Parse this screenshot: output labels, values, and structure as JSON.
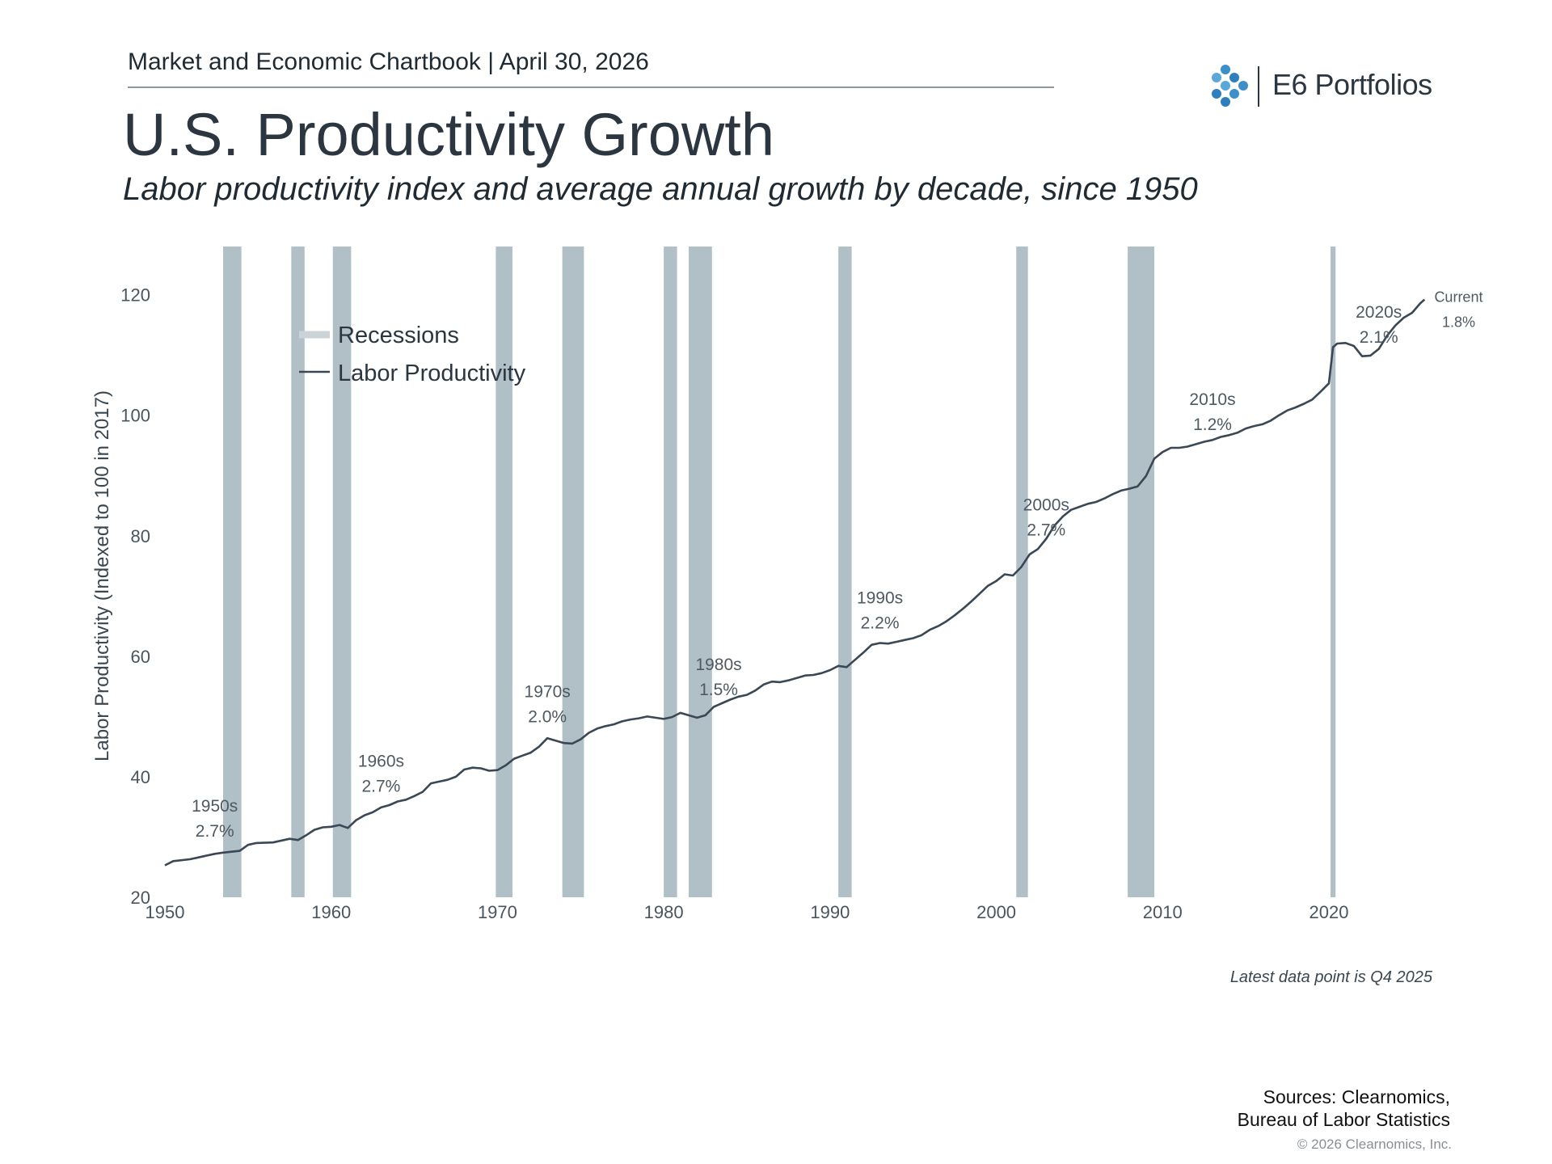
{
  "header": {
    "chartbook_title": "Market and Economic Chartbook | April 30, 2026",
    "brand_name": "E6 Portfolios"
  },
  "chart_data": {
    "type": "line",
    "title": "U.S. Productivity Growth",
    "subtitle": "Labor productivity index and average annual growth by decade, since 1950",
    "ylabel": "Labor Productivity (Indexed to 100 in 2017)",
    "xlim": [
      1950,
      2027
    ],
    "ylim": [
      20,
      128
    ],
    "y_ticks": [
      20,
      40,
      60,
      80,
      100,
      120
    ],
    "x_ticks": [
      1950,
      1960,
      1970,
      1980,
      1990,
      2000,
      2010,
      2020
    ],
    "grid": false,
    "legend": {
      "placement": "top-left",
      "entries": [
        "Recessions",
        "Labor Productivity"
      ]
    },
    "series": [
      {
        "name": "Labor Productivity",
        "points": [
          [
            1950.0,
            25.3
          ],
          [
            1950.5,
            26.0
          ],
          [
            1951.5,
            26.3
          ],
          [
            1952.0,
            26.6
          ],
          [
            1953.0,
            27.2
          ],
          [
            1953.5,
            27.4
          ],
          [
            1954.5,
            27.7
          ],
          [
            1955.0,
            28.7
          ],
          [
            1955.5,
            29.0
          ],
          [
            1956.5,
            29.1
          ],
          [
            1957.5,
            29.7
          ],
          [
            1958.0,
            29.5
          ],
          [
            1958.5,
            30.3
          ],
          [
            1959.0,
            31.2
          ],
          [
            1959.5,
            31.6
          ],
          [
            1960.0,
            31.7
          ],
          [
            1960.5,
            32.0
          ],
          [
            1961.0,
            31.5
          ],
          [
            1961.5,
            32.8
          ],
          [
            1962.0,
            33.6
          ],
          [
            1962.5,
            34.1
          ],
          [
            1963.0,
            34.9
          ],
          [
            1963.5,
            35.3
          ],
          [
            1964.0,
            35.9
          ],
          [
            1964.5,
            36.2
          ],
          [
            1965.0,
            36.8
          ],
          [
            1965.5,
            37.5
          ],
          [
            1966.0,
            38.9
          ],
          [
            1966.5,
            39.2
          ],
          [
            1967.0,
            39.5
          ],
          [
            1967.5,
            40.0
          ],
          [
            1968.0,
            41.2
          ],
          [
            1968.5,
            41.5
          ],
          [
            1969.0,
            41.4
          ],
          [
            1969.5,
            41.0
          ],
          [
            1970.0,
            41.1
          ],
          [
            1970.5,
            41.9
          ],
          [
            1971.0,
            43.0
          ],
          [
            1971.5,
            43.5
          ],
          [
            1972.0,
            44.0
          ],
          [
            1972.5,
            45.0
          ],
          [
            1973.0,
            46.4
          ],
          [
            1973.5,
            46.0
          ],
          [
            1974.0,
            45.6
          ],
          [
            1974.5,
            45.5
          ],
          [
            1975.0,
            46.2
          ],
          [
            1975.5,
            47.3
          ],
          [
            1976.0,
            48.0
          ],
          [
            1976.5,
            48.4
          ],
          [
            1977.0,
            48.7
          ],
          [
            1977.5,
            49.2
          ],
          [
            1978.0,
            49.5
          ],
          [
            1978.5,
            49.7
          ],
          [
            1979.0,
            50.0
          ],
          [
            1979.5,
            49.8
          ],
          [
            1980.0,
            49.6
          ],
          [
            1980.5,
            49.9
          ],
          [
            1981.0,
            50.6
          ],
          [
            1981.5,
            50.2
          ],
          [
            1982.0,
            49.8
          ],
          [
            1982.5,
            50.2
          ],
          [
            1983.0,
            51.6
          ],
          [
            1983.5,
            52.2
          ],
          [
            1984.0,
            52.8
          ],
          [
            1984.5,
            53.3
          ],
          [
            1985.0,
            53.6
          ],
          [
            1985.5,
            54.3
          ],
          [
            1986.0,
            55.3
          ],
          [
            1986.5,
            55.8
          ],
          [
            1987.0,
            55.7
          ],
          [
            1987.5,
            56.0
          ],
          [
            1988.0,
            56.4
          ],
          [
            1988.5,
            56.8
          ],
          [
            1989.0,
            56.9
          ],
          [
            1989.5,
            57.2
          ],
          [
            1990.0,
            57.7
          ],
          [
            1990.5,
            58.4
          ],
          [
            1991.0,
            58.2
          ],
          [
            1991.5,
            59.4
          ],
          [
            1992.0,
            60.6
          ],
          [
            1992.5,
            61.9
          ],
          [
            1993.0,
            62.2
          ],
          [
            1993.5,
            62.1
          ],
          [
            1994.0,
            62.4
          ],
          [
            1994.5,
            62.7
          ],
          [
            1995.0,
            63.0
          ],
          [
            1995.5,
            63.5
          ],
          [
            1996.0,
            64.4
          ],
          [
            1996.5,
            65.0
          ],
          [
            1997.0,
            65.8
          ],
          [
            1997.5,
            66.8
          ],
          [
            1998.0,
            67.9
          ],
          [
            1998.5,
            69.1
          ],
          [
            1999.0,
            70.4
          ],
          [
            1999.5,
            71.7
          ],
          [
            2000.0,
            72.5
          ],
          [
            2000.5,
            73.6
          ],
          [
            2001.0,
            73.4
          ],
          [
            2001.5,
            74.8
          ],
          [
            2002.0,
            76.9
          ],
          [
            2002.5,
            77.8
          ],
          [
            2003.0,
            79.5
          ],
          [
            2003.5,
            81.7
          ],
          [
            2004.0,
            83.2
          ],
          [
            2004.5,
            84.3
          ],
          [
            2005.0,
            84.8
          ],
          [
            2005.5,
            85.3
          ],
          [
            2006.0,
            85.6
          ],
          [
            2006.5,
            86.2
          ],
          [
            2007.0,
            86.9
          ],
          [
            2007.5,
            87.5
          ],
          [
            2008.0,
            87.8
          ],
          [
            2008.5,
            88.2
          ],
          [
            2009.0,
            89.9
          ],
          [
            2009.5,
            92.8
          ],
          [
            2010.0,
            93.9
          ],
          [
            2010.5,
            94.6
          ],
          [
            2011.0,
            94.6
          ],
          [
            2011.5,
            94.8
          ],
          [
            2012.0,
            95.2
          ],
          [
            2012.5,
            95.6
          ],
          [
            2013.0,
            95.9
          ],
          [
            2013.5,
            96.4
          ],
          [
            2014.0,
            96.7
          ],
          [
            2014.5,
            97.1
          ],
          [
            2015.0,
            97.8
          ],
          [
            2015.5,
            98.2
          ],
          [
            2016.0,
            98.5
          ],
          [
            2016.5,
            99.1
          ],
          [
            2017.0,
            100.0
          ],
          [
            2017.5,
            100.8
          ],
          [
            2018.0,
            101.3
          ],
          [
            2018.5,
            101.9
          ],
          [
            2019.0,
            102.6
          ],
          [
            2019.5,
            103.9
          ],
          [
            2020.0,
            105.3
          ],
          [
            2020.25,
            111.3
          ],
          [
            2020.5,
            111.9
          ],
          [
            2021.0,
            112.0
          ],
          [
            2021.5,
            111.5
          ],
          [
            2022.0,
            109.8
          ],
          [
            2022.5,
            109.9
          ],
          [
            2023.0,
            111.0
          ],
          [
            2023.5,
            113.2
          ],
          [
            2024.0,
            114.9
          ],
          [
            2024.5,
            116.2
          ],
          [
            2025.0,
            117.0
          ],
          [
            2025.5,
            118.6
          ],
          [
            2025.75,
            119.2
          ]
        ]
      }
    ],
    "recessions": [
      [
        1953.5,
        1954.6
      ],
      [
        1957.6,
        1958.4
      ],
      [
        1960.1,
        1961.2
      ],
      [
        1969.9,
        1970.9
      ],
      [
        1973.9,
        1975.2
      ],
      [
        1980.0,
        1980.8
      ],
      [
        1981.5,
        1982.9
      ],
      [
        1990.5,
        1991.3
      ],
      [
        2001.2,
        2001.9
      ],
      [
        2007.9,
        2009.5
      ],
      [
        2020.1,
        2020.4
      ]
    ],
    "annotations": [
      {
        "decade": "1950s",
        "growth": "2.7%",
        "x": 1953,
        "y": 34.2
      },
      {
        "decade": "1960s",
        "growth": "2.7%",
        "x": 1963,
        "y": 41.7
      },
      {
        "decade": "1970s",
        "growth": "2.0%",
        "x": 1973,
        "y": 53.2
      },
      {
        "decade": "1980s",
        "growth": "1.5%",
        "x": 1983.3,
        "y": 57.7
      },
      {
        "decade": "1990s",
        "growth": "2.2%",
        "x": 1993,
        "y": 68.8
      },
      {
        "decade": "2000s",
        "growth": "2.7%",
        "x": 2003.0,
        "y": 84.2
      },
      {
        "decade": "2010s",
        "growth": "1.2%",
        "x": 2013,
        "y": 101.7
      },
      {
        "decade": "2020s",
        "growth": "2.1%",
        "x": 2023,
        "y": 116.2
      },
      {
        "decade": "Current",
        "growth": "1.8%",
        "x": 2027.8,
        "y": 118.8
      }
    ]
  },
  "footer": {
    "latest_note": "Latest data point is Q4 2025",
    "sources_line1": "Sources: Clearnomics,",
    "sources_line2": "Bureau of Labor Statistics",
    "copyright": "© 2026 Clearnomics, Inc."
  },
  "colors": {
    "line": "#3a4754",
    "recession": "#b1bfc6",
    "text": "#2b3640",
    "logo_blue": "#3d8fc9"
  },
  "icons": {
    "logo": "e6-cluster-logo-icon"
  }
}
